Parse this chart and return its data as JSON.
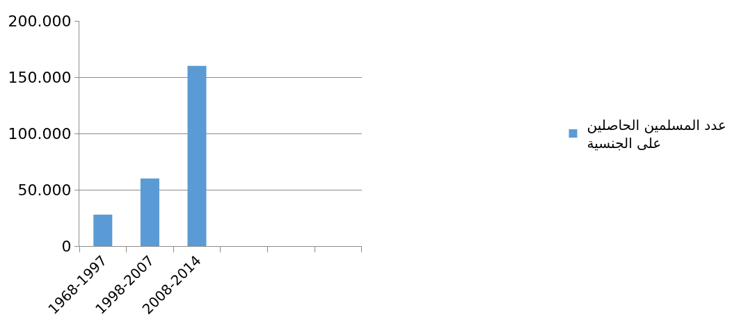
{
  "chart_data": {
    "type": "bar",
    "categories": [
      "1968-1997",
      "1998-2007",
      "2008-2014",
      null,
      null,
      null
    ],
    "series": [
      {
        "name": "عدد المسلمين الحاصلين\nعلى الجنسية",
        "color": "#5b9bd5",
        "values": [
          28000,
          60000,
          160000,
          null,
          null,
          null
        ]
      }
    ],
    "ylim": [
      0,
      200000
    ],
    "yticks": [
      {
        "value": 0,
        "label": "0"
      },
      {
        "value": 50000,
        "label": "50.000"
      },
      {
        "value": 100000,
        "label": "100.000"
      },
      {
        "value": 150000,
        "label": "150.000"
      },
      {
        "value": 200000,
        "label": "200.000"
      }
    ],
    "grid": "y",
    "legend": "right"
  }
}
